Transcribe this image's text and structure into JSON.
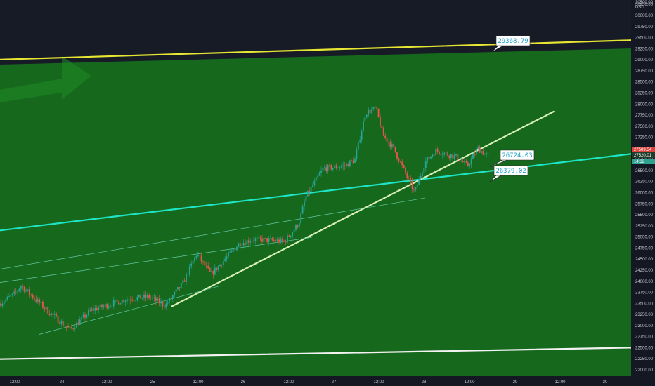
{
  "chart_data": {
    "type": "candlestick",
    "currency_label": "USD",
    "y_top_label": "30500.00",
    "ylim": [
      22000,
      30500
    ],
    "y_ticks": [
      "30250.00",
      "30000.00",
      "29750.00",
      "29500.00",
      "29250.00",
      "29000.00",
      "28750.00",
      "28500.00",
      "28250.00",
      "28000.00",
      "27750.00",
      "27500.00",
      "27250.00",
      "27000.00",
      "26750.00",
      "26500.00",
      "26250.00",
      "26000.00",
      "25750.00",
      "25500.00",
      "25250.00",
      "25000.00",
      "24750.00",
      "24500.00",
      "24250.00",
      "24000.00",
      "23750.00",
      "23500.00",
      "23250.00",
      "23000.00",
      "22750.00",
      "22500.00",
      "22250.00",
      "22000.00"
    ],
    "x_ticks": [
      "12:00",
      "24",
      "12:00",
      "25",
      "12:00",
      "26",
      "12:00",
      "27",
      "12:00",
      "28",
      "12:00",
      "29",
      "12:00",
      "30"
    ],
    "price_tags": [
      {
        "label": "27509.54",
        "color": "#e0443e"
      },
      {
        "label": "27520.01",
        "color": "#1f3b2a"
      },
      {
        "label": "14:32",
        "color": "#2ea18f"
      }
    ],
    "callouts": [
      {
        "label": "29368.79",
        "x": "28 14:00",
        "y": 29368.79
      },
      {
        "label": "26724.03",
        "x": "28 14:00",
        "y": 26724.03
      },
      {
        "label": "26379.02",
        "x": "28 14:00",
        "y": 26379.02
      }
    ],
    "trendlines": [
      {
        "name": "upper-channel",
        "color": "#e6e633",
        "from": {
          "x": "23 06:00",
          "y": 29000
        },
        "to": {
          "x": "30 06:00",
          "y": 29440
        }
      },
      {
        "name": "lower-channel",
        "color": "#f2f2f2",
        "from": {
          "x": "23 06:00",
          "y": 22240
        },
        "to": {
          "x": "30 06:00",
          "y": 22500
        }
      },
      {
        "name": "cyan-support",
        "color": "#1de5c6",
        "from": {
          "x": "23 06:00",
          "y": 25130
        },
        "to": {
          "x": "30 06:00",
          "y": 26870
        }
      },
      {
        "name": "white-trend",
        "color": "#d9efb8",
        "from": {
          "x": "25 05:00",
          "y": 23430
        },
        "to": {
          "x": "29 10:00",
          "y": 27830
        }
      },
      {
        "name": "thin-channel-1",
        "color": "#63c9a8",
        "from": {
          "x": "23 06:00",
          "y": 23950
        },
        "to": {
          "x": "26 18:00",
          "y": 24990
        }
      },
      {
        "name": "thin-channel-2",
        "color": "#63c9a8",
        "from": {
          "x": "23 18:00",
          "y": 22800
        },
        "to": {
          "x": "25 18:00",
          "y": 23900
        }
      },
      {
        "name": "thin-channel-3",
        "color": "#63c9a8",
        "from": {
          "x": "23 06:00",
          "y": 24250
        },
        "to": {
          "x": "28 00:00",
          "y": 25880
        }
      }
    ],
    "zone_top_color": "#161a26",
    "zone_fill_color": "#1a6b1e",
    "up_color": "#26a69a",
    "down_color": "#ef5350"
  }
}
